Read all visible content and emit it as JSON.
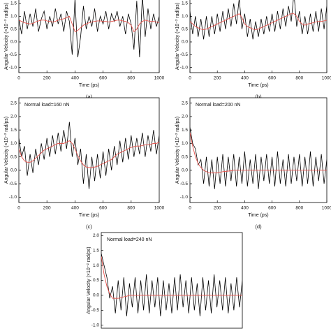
{
  "chart_data": [
    {
      "type": "line",
      "label": "(a)",
      "xlabel": "Time (ps)",
      "ylabel": "Angular Velocity (×10⁻² rad/ps)",
      "x": [
        0,
        20,
        40,
        60,
        80,
        100,
        120,
        140,
        160,
        180,
        200,
        220,
        240,
        260,
        280,
        300,
        320,
        340,
        360,
        380,
        400,
        420,
        440,
        460,
        480,
        500,
        520,
        540,
        560,
        580,
        600,
        620,
        640,
        660,
        680,
        700,
        720,
        740,
        760,
        780,
        800,
        820,
        840,
        860,
        880,
        900,
        920,
        940,
        960,
        980,
        1000
      ],
      "series": [
        {
          "color": "#000000",
          "values": [
            0.9,
            0.3,
            1.2,
            0.5,
            1.1,
            0.6,
            1.3,
            0.4,
            0.9,
            1.2,
            0.5,
            1.0,
            0.6,
            1.3,
            0.7,
            1.1,
            0.4,
            1.2,
            0.8,
            -0.5,
            1.7,
            -0.6,
            0.2,
            1.4,
            0.5,
            1.0,
            0.6,
            1.3,
            0.4,
            1.0,
            0.7,
            1.2,
            0.5,
            1.1,
            0.8,
            1.2,
            0.6,
            1.0,
            0.3,
            1.1,
            0.7,
            -0.3,
            1.6,
            -0.6,
            1.8,
            0.2,
            1.3,
            0.5,
            1.1,
            0.6,
            1.0
          ]
        },
        {
          "color": "#e8504a",
          "values": [
            0.85,
            0.8,
            0.75,
            0.72,
            0.7,
            0.72,
            0.78,
            0.82,
            0.85,
            0.85,
            0.82,
            0.8,
            0.78,
            0.8,
            0.85,
            0.88,
            0.9,
            0.95,
            1.0,
            0.7,
            0.4,
            0.45,
            0.55,
            0.65,
            0.7,
            0.75,
            0.78,
            0.8,
            0.82,
            0.82,
            0.8,
            0.8,
            0.78,
            0.8,
            0.82,
            0.85,
            0.85,
            0.82,
            0.8,
            0.75,
            0.65,
            0.4,
            0.5,
            0.7,
            0.8,
            0.85,
            0.82,
            0.8,
            0.8,
            0.78,
            0.75
          ]
        }
      ],
      "xlim": [
        0,
        1000
      ],
      "ylim": [
        -1.2,
        1.8
      ],
      "xticks": [
        0,
        200,
        400,
        600,
        800,
        1000
      ],
      "yticks": [
        1.5,
        {
          "value": 1,
          "label": "1.0"
        },
        0.5,
        {
          "value": 0,
          "label": "0.0"
        },
        -0.5,
        {
          "value": -1,
          "label": "-1.0"
        }
      ]
    },
    {
      "type": "line",
      "label": "(b)",
      "xlabel": "Time (ps)",
      "ylabel": "Angular Velocity (×10⁻² rad/ps)",
      "x": [
        0,
        20,
        40,
        60,
        80,
        100,
        120,
        140,
        160,
        180,
        200,
        220,
        240,
        260,
        280,
        300,
        320,
        340,
        360,
        380,
        400,
        420,
        440,
        460,
        480,
        500,
        520,
        540,
        560,
        580,
        600,
        620,
        640,
        660,
        680,
        700,
        720,
        740,
        760,
        780,
        800,
        820,
        840,
        860,
        880,
        900,
        920,
        940,
        960,
        980,
        1000
      ],
      "series": [
        {
          "color": "#000000",
          "values": [
            1.2,
            0.3,
            1.0,
            0.2,
            0.9,
            0.1,
            1.0,
            0.2,
            1.0,
            0.3,
            1.1,
            0.4,
            1.2,
            0.5,
            1.3,
            0.6,
            1.5,
            0.7,
            1.7,
            0.5,
            1.1,
            0.2,
            0.9,
            0.1,
            0.8,
            0.2,
            0.9,
            0.3,
            1.0,
            0.4,
            1.1,
            0.4,
            1.2,
            0.5,
            1.3,
            0.6,
            1.4,
            0.8,
            1.9,
            0.6,
            1.2,
            0.3,
            1.0,
            0.3,
            1.1,
            0.4,
            1.2,
            0.4,
            1.3,
            0.5,
            1.4
          ]
        },
        {
          "color": "#e8504a",
          "values": [
            0.8,
            0.7,
            0.6,
            0.55,
            0.5,
            0.48,
            0.5,
            0.55,
            0.6,
            0.65,
            0.7,
            0.75,
            0.8,
            0.85,
            0.9,
            0.95,
            1.0,
            1.05,
            1.1,
            0.95,
            0.7,
            0.6,
            0.55,
            0.5,
            0.48,
            0.5,
            0.55,
            0.6,
            0.65,
            0.7,
            0.75,
            0.8,
            0.85,
            0.9,
            0.95,
            1.0,
            1.05,
            1.1,
            1.1,
            1.0,
            0.8,
            0.7,
            0.65,
            0.7,
            0.72,
            0.75,
            0.78,
            0.8,
            0.8,
            0.82,
            0.85
          ]
        }
      ],
      "xlim": [
        0,
        1000
      ],
      "ylim": [
        -1.2,
        1.8
      ],
      "xticks": [
        0,
        200,
        400,
        600,
        800,
        1000
      ],
      "yticks": [
        1.5,
        {
          "value": 1,
          "label": "1.0"
        },
        0.5,
        {
          "value": 0,
          "label": "0.0"
        },
        -0.5,
        {
          "value": -1,
          "label": "-1.0"
        }
      ]
    },
    {
      "type": "line",
      "label": "(c)",
      "annotation": "Normal load=160 nN",
      "xlabel": "Time (ps)",
      "ylabel": "Angular Velocity (×10⁻² rad/ps)",
      "x": [
        0,
        20,
        40,
        60,
        80,
        100,
        120,
        140,
        160,
        180,
        200,
        220,
        240,
        260,
        280,
        300,
        320,
        340,
        360,
        380,
        400,
        420,
        440,
        460,
        480,
        500,
        520,
        540,
        560,
        580,
        600,
        620,
        640,
        660,
        680,
        700,
        720,
        740,
        760,
        780,
        800,
        820,
        840,
        860,
        880,
        900,
        920,
        940,
        960,
        980,
        1000
      ],
      "series": [
        {
          "color": "#000000",
          "values": [
            1.2,
            0.5,
            0.9,
            -0.2,
            0.6,
            -0.1,
            0.8,
            0.2,
            1.0,
            0.4,
            1.2,
            0.5,
            1.3,
            0.6,
            1.4,
            0.7,
            1.5,
            0.8,
            1.8,
            0.5,
            1.2,
            0.2,
            0.8,
            -0.5,
            0.6,
            -0.7,
            0.5,
            -0.4,
            0.6,
            -0.3,
            0.7,
            -0.2,
            0.8,
            0.0,
            0.9,
            0.2,
            1.1,
            0.3,
            1.2,
            0.4,
            1.3,
            0.5,
            1.2,
            0.6,
            1.4,
            0.5,
            1.3,
            0.7,
            1.5,
            0.6,
            1.3
          ]
        },
        {
          "color": "#e8504a",
          "values": [
            0.8,
            0.5,
            0.35,
            0.3,
            0.3,
            0.35,
            0.45,
            0.55,
            0.65,
            0.75,
            0.8,
            0.85,
            0.9,
            0.95,
            1.0,
            1.0,
            1.0,
            1.05,
            1.1,
            1.0,
            0.8,
            0.55,
            0.35,
            0.2,
            0.12,
            0.1,
            0.1,
            0.12,
            0.15,
            0.2,
            0.25,
            0.3,
            0.35,
            0.4,
            0.5,
            0.6,
            0.65,
            0.7,
            0.75,
            0.8,
            0.85,
            0.88,
            0.9,
            0.9,
            0.92,
            0.95,
            0.95,
            0.97,
            1.0,
            1.0,
            1.05
          ]
        }
      ],
      "xlim": [
        0,
        1000
      ],
      "ylim": [
        -1.2,
        2.7
      ],
      "xticks": [
        0,
        200,
        400,
        600,
        800,
        1000
      ],
      "yticks": [
        2.5,
        {
          "value": 2,
          "label": "2.0"
        },
        1.5,
        {
          "value": 1,
          "label": "1.0"
        },
        0.5,
        {
          "value": 0,
          "label": "0.0"
        },
        -0.5,
        {
          "value": -1,
          "label": "-1.0"
        }
      ]
    },
    {
      "type": "line",
      "label": "(d)",
      "annotation": "Normal load=200 nN",
      "xlabel": "Time (ps)",
      "ylabel": "Angular Velocity (×10⁻² rad/ps)",
      "x": [
        0,
        20,
        40,
        60,
        80,
        100,
        120,
        140,
        160,
        180,
        200,
        220,
        240,
        260,
        280,
        300,
        320,
        340,
        360,
        380,
        400,
        420,
        440,
        460,
        480,
        500,
        520,
        540,
        560,
        580,
        600,
        620,
        640,
        660,
        680,
        700,
        720,
        740,
        760,
        780,
        800,
        820,
        840,
        860,
        880,
        900,
        920,
        940,
        960,
        980,
        1000
      ],
      "series": [
        {
          "color": "#000000",
          "values": [
            1.6,
            1.0,
            0.8,
            0.2,
            0.4,
            -0.5,
            0.5,
            -0.6,
            0.4,
            -0.7,
            0.5,
            -0.5,
            0.6,
            -0.6,
            0.5,
            -0.4,
            0.6,
            -0.6,
            0.5,
            -0.5,
            0.7,
            -0.6,
            0.4,
            -0.5,
            0.6,
            -0.7,
            0.5,
            -0.4,
            0.6,
            -0.5,
            0.5,
            -0.6,
            0.7,
            -0.5,
            0.4,
            -0.6,
            0.6,
            -0.5,
            0.5,
            -0.4,
            0.6,
            -0.6,
            0.5,
            -0.5,
            0.7,
            -0.6,
            0.5,
            -0.4,
            0.6,
            -0.5,
            0.4
          ]
        },
        {
          "color": "#e8504a",
          "values": [
            1.4,
            0.9,
            0.5,
            0.25,
            0.1,
            0,
            -0.05,
            -0.1,
            -0.1,
            -0.1,
            -0.1,
            -0.08,
            -0.05,
            -0.04,
            -0.03,
            -0.02,
            0,
            0,
            0,
            0,
            0,
            0,
            0,
            0,
            0,
            0,
            0,
            0,
            0,
            0,
            0,
            0,
            0,
            0,
            0,
            0,
            0,
            0,
            0,
            0,
            0,
            0,
            0,
            0,
            0,
            0,
            0,
            0,
            0,
            0,
            0
          ]
        }
      ],
      "xlim": [
        0,
        1000
      ],
      "ylim": [
        -1.2,
        2.7
      ],
      "xticks": [
        0,
        200,
        400,
        600,
        800,
        1000
      ],
      "yticks": [
        2.5,
        {
          "value": 2,
          "label": "2.0"
        },
        1.5,
        {
          "value": 1,
          "label": "1.0"
        },
        0.5,
        {
          "value": 0,
          "label": "0.0"
        },
        -0.5,
        {
          "value": -1,
          "label": "-1.0"
        }
      ]
    },
    {
      "type": "line",
      "annotation": "Normal load=240 nN",
      "ylabel": "Angular Velocity (×10⁻² rad/ps)",
      "x": [
        0,
        20,
        40,
        60,
        80,
        100,
        120,
        140,
        160,
        180,
        200,
        220,
        240,
        260,
        280,
        300,
        320,
        340,
        360,
        380,
        400,
        420,
        440,
        460,
        480,
        500,
        520,
        540,
        560,
        580,
        600,
        620,
        640,
        660,
        680,
        700,
        720,
        740,
        760,
        780,
        800,
        820,
        840,
        860,
        880,
        900,
        920,
        940,
        960,
        980,
        1000
      ],
      "series": [
        {
          "color": "#000000",
          "values": [
            1.4,
            1.0,
            0.6,
            -0.1,
            0.3,
            -0.6,
            0.5,
            -0.5,
            0.6,
            -0.7,
            0.4,
            -0.4,
            0.6,
            -0.6,
            0.5,
            -0.5,
            0.7,
            -0.6,
            0.5,
            -0.4,
            0.6,
            -0.7,
            0.5,
            -0.5,
            0.4,
            -0.6,
            0.6,
            -0.5,
            0.7,
            -0.4,
            0.5,
            -0.6,
            0.6,
            -0.5,
            0.4,
            -0.7,
            0.6,
            -0.5,
            0.5,
            -0.6,
            0.7,
            -0.4,
            0.5,
            -0.5,
            0.6,
            -0.6,
            0.4,
            -0.5,
            0.6,
            -0.4,
            0.5
          ]
        },
        {
          "color": "#e8504a",
          "values": [
            1.3,
            0.7,
            0.3,
            0.05,
            -0.1,
            -0.1,
            -0.1,
            -0.08,
            -0.05,
            -0.03,
            0,
            0,
            0,
            0,
            0,
            0,
            0,
            0,
            0,
            0,
            0,
            0,
            0,
            0,
            0,
            0,
            0,
            0,
            0,
            0,
            0,
            0,
            0,
            0,
            0,
            0,
            0,
            0,
            0,
            0,
            0,
            0,
            0,
            0,
            0,
            0,
            0,
            0,
            0,
            0,
            0
          ]
        }
      ],
      "xlim": [
        0,
        1000
      ],
      "ylim": [
        -1.1,
        2.1
      ],
      "yticks": [
        {
          "value": 2,
          "label": "2.0"
        },
        1.5,
        {
          "value": 1,
          "label": "1.0"
        },
        0.5,
        {
          "value": 0,
          "label": "0.0"
        },
        -0.5,
        {
          "value": -1,
          "label": "-1.0"
        }
      ]
    }
  ]
}
